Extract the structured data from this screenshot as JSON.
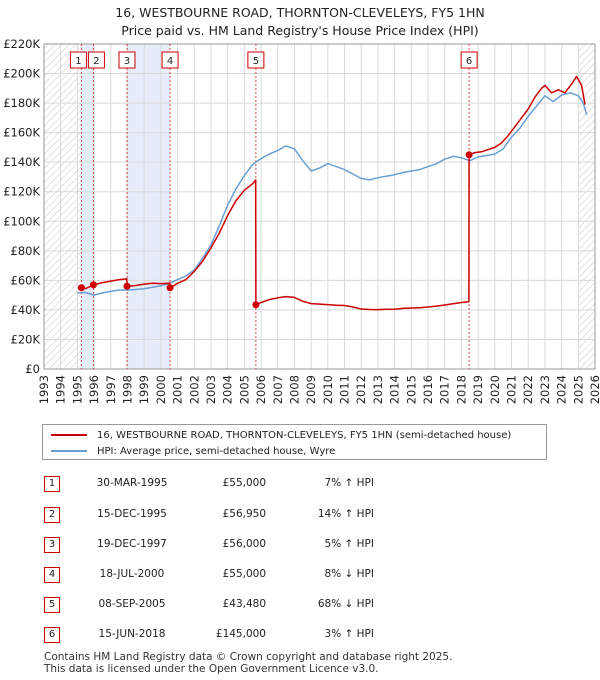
{
  "chart_data": {
    "type": "line",
    "title": "16, WESTBOURNE ROAD, THORNTON-CLEVELEYS, FY5 1HN",
    "subtitle": "Price paid vs. HM Land Registry's House Price Index (HPI)",
    "xlabel": "",
    "ylabel": "",
    "xlim": [
      1993,
      2026
    ],
    "ylim": [
      0,
      220000
    ],
    "x_ticks": [
      "1993",
      "1994",
      "1995",
      "1996",
      "1997",
      "1998",
      "1999",
      "2000",
      "2001",
      "2002",
      "2003",
      "2004",
      "2005",
      "2006",
      "2007",
      "2008",
      "2009",
      "2010",
      "2011",
      "2012",
      "2013",
      "2014",
      "2015",
      "2016",
      "2017",
      "2018",
      "2019",
      "2020",
      "2021",
      "2022",
      "2023",
      "2024",
      "2025",
      "2026"
    ],
    "y_ticks": [
      {
        "value": 0,
        "label": "£0"
      },
      {
        "value": 20000,
        "label": "£20K"
      },
      {
        "value": 40000,
        "label": "£40K"
      },
      {
        "value": 60000,
        "label": "£60K"
      },
      {
        "value": 80000,
        "label": "£80K"
      },
      {
        "value": 100000,
        "label": "£100K"
      },
      {
        "value": 120000,
        "label": "£120K"
      },
      {
        "value": 140000,
        "label": "£140K"
      },
      {
        "value": 160000,
        "label": "£160K"
      },
      {
        "value": 180000,
        "label": "£180K"
      },
      {
        "value": 200000,
        "label": "£200K"
      },
      {
        "value": 220000,
        "label": "£220K"
      }
    ],
    "grid": true,
    "shaded_ranges": [
      [
        1995.24,
        1995.96
      ],
      [
        1997.97,
        2000.55
      ]
    ],
    "hatched_ranges": [
      [
        1993,
        1995.24
      ],
      [
        2025.0,
        2026
      ]
    ],
    "sale_markers": [
      {
        "label": "1",
        "x": 1995.24,
        "y": 55000
      },
      {
        "label": "2",
        "x": 1995.96,
        "y": 56950
      },
      {
        "label": "3",
        "x": 1997.97,
        "y": 56000
      },
      {
        "label": "4",
        "x": 2000.55,
        "y": 55000
      },
      {
        "label": "5",
        "x": 2005.69,
        "y": 43480
      },
      {
        "label": "6",
        "x": 2018.46,
        "y": 145000
      }
    ],
    "series": [
      {
        "name": "16, WESTBOURNE ROAD, THORNTON-CLEVELEYS, FY5 1HN (semi-detached house)",
        "color": "#cc0000",
        "x": [
          1995.24,
          1995.5,
          1995.96,
          1996.5,
          1997.0,
          1997.5,
          1997.96,
          1997.97,
          1998.5,
          1999.0,
          1999.5,
          2000.0,
          2000.54,
          2000.55,
          2001.0,
          2001.5,
          2002.0,
          2002.5,
          2003.0,
          2003.5,
          2004.0,
          2004.5,
          2005.0,
          2005.5,
          2005.68,
          2005.69,
          2006.0,
          2006.5,
          2007.0,
          2007.5,
          2008.0,
          2008.5,
          2009.0,
          2009.5,
          2010.0,
          2010.5,
          2011.0,
          2011.5,
          2012.0,
          2012.5,
          2013.0,
          2013.5,
          2014.0,
          2014.5,
          2015.0,
          2015.5,
          2016.0,
          2016.5,
          2017.0,
          2017.5,
          2018.0,
          2018.45,
          2018.46,
          2018.8,
          2019.2,
          2019.6,
          2020.0,
          2020.4,
          2020.8,
          2021.2,
          2021.6,
          2022.0,
          2022.4,
          2022.8,
          2023.0,
          2023.4,
          2023.8,
          2024.2,
          2024.6,
          2024.9,
          2025.2,
          2025.4
        ],
        "y": [
          55000,
          54500,
          56950,
          58500,
          59500,
          60500,
          61000,
          56000,
          56500,
          57500,
          58000,
          57800,
          58000,
          55000,
          58000,
          60500,
          66000,
          73000,
          82000,
          92000,
          104000,
          114000,
          121000,
          125500,
          128000,
          43480,
          45000,
          47000,
          48200,
          49000,
          48500,
          45800,
          44300,
          43900,
          43600,
          43200,
          43000,
          42000,
          40600,
          40300,
          40200,
          40400,
          40500,
          41000,
          41300,
          41500,
          42000,
          42600,
          43300,
          44200,
          45000,
          45500,
          145000,
          146500,
          147000,
          148500,
          150000,
          153000,
          158000,
          164000,
          170000,
          176000,
          184000,
          190000,
          192000,
          187000,
          189000,
          187000,
          193000,
          198000,
          192000,
          179000
        ]
      },
      {
        "name": "HPI: Average price, semi-detached house, Wyre",
        "color": "#6a9fd4",
        "x": [
          1995.0,
          1995.5,
          1996.0,
          1996.5,
          1997.0,
          1997.5,
          1998.0,
          1998.5,
          1999.0,
          1999.5,
          2000.0,
          2000.5,
          2001.0,
          2001.5,
          2002.0,
          2002.5,
          2003.0,
          2003.5,
          2004.0,
          2004.5,
          2005.0,
          2005.5,
          2006.0,
          2006.5,
          2007.0,
          2007.5,
          2008.0,
          2008.5,
          2009.0,
          2009.5,
          2010.0,
          2010.5,
          2011.0,
          2011.5,
          2012.0,
          2012.5,
          2013.0,
          2013.5,
          2014.0,
          2014.5,
          2015.0,
          2015.5,
          2016.0,
          2016.5,
          2017.0,
          2017.5,
          2018.0,
          2018.5,
          2019.0,
          2019.5,
          2020.0,
          2020.5,
          2021.0,
          2021.5,
          2022.0,
          2022.5,
          2023.0,
          2023.5,
          2024.0,
          2024.5,
          2025.0,
          2025.3,
          2025.5
        ],
        "y": [
          51500,
          51800,
          50000,
          51500,
          52500,
          53500,
          53500,
          53800,
          54300,
          55300,
          56300,
          57800,
          60500,
          63000,
          67000,
          75000,
          84000,
          97000,
          111000,
          122000,
          131000,
          138500,
          142500,
          145500,
          148000,
          151000,
          149000,
          141000,
          134000,
          136000,
          139000,
          137000,
          135000,
          132000,
          129000,
          128000,
          129500,
          130500,
          131500,
          133000,
          134000,
          135000,
          137000,
          139000,
          142000,
          144000,
          143000,
          141000,
          143500,
          144500,
          145500,
          149000,
          157000,
          163000,
          171000,
          178000,
          185000,
          181000,
          185500,
          187000,
          185000,
          180000,
          172000
        ]
      }
    ]
  },
  "legend": {
    "entries": [
      {
        "label": "16, WESTBOURNE ROAD, THORNTON-CLEVELEYS, FY5 1HN (semi-detached house)",
        "color": "#cc0000"
      },
      {
        "label": "HPI: Average price, semi-detached house, Wyre",
        "color": "#6a9fd4"
      }
    ]
  },
  "sales": [
    {
      "num": "1",
      "date": "30-MAR-1995",
      "price": "£55,000",
      "hpi": "7% ↑ HPI"
    },
    {
      "num": "2",
      "date": "15-DEC-1995",
      "price": "£56,950",
      "hpi": "14% ↑ HPI"
    },
    {
      "num": "3",
      "date": "19-DEC-1997",
      "price": "£56,000",
      "hpi": "5% ↑ HPI"
    },
    {
      "num": "4",
      "date": "18-JUL-2000",
      "price": "£55,000",
      "hpi": "8% ↓ HPI"
    },
    {
      "num": "5",
      "date": "08-SEP-2005",
      "price": "£43,480",
      "hpi": "68% ↓ HPI"
    },
    {
      "num": "6",
      "date": "15-JUN-2018",
      "price": "£145,000",
      "hpi": "3% ↑ HPI"
    }
  ],
  "footer": {
    "line1": "Contains HM Land Registry data © Crown copyright and database right 2025.",
    "line2": "This data is licensed under the Open Government Licence v3.0."
  }
}
